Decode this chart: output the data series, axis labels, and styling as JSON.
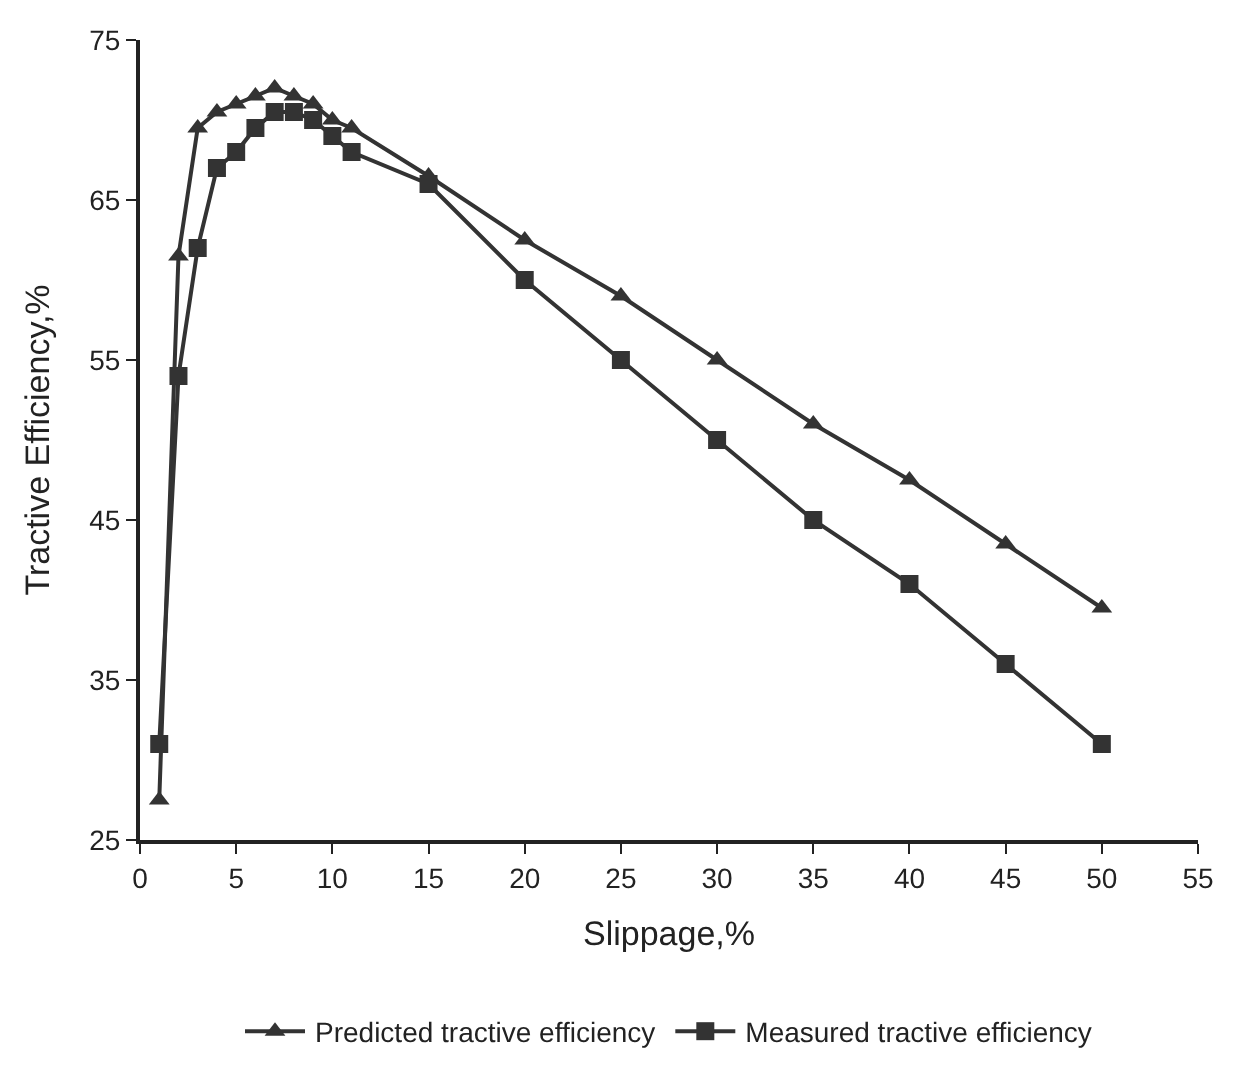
{
  "chart_data": {
    "type": "line",
    "xlabel": "Slippage,%",
    "ylabel": "Tractive Efficiency,%",
    "x": [
      1,
      2,
      3,
      4,
      5,
      6,
      7,
      8,
      9,
      10,
      11,
      15,
      20,
      25,
      30,
      35,
      40,
      45,
      50
    ],
    "series": [
      {
        "name": "Predicted tractive efficiency",
        "color": "#333333",
        "marker": "triangle",
        "values": [
          27.5,
          61.5,
          69.5,
          70.5,
          71,
          71.5,
          72,
          71.5,
          71,
          70,
          69.5,
          66.5,
          62.5,
          59,
          55,
          51,
          47.5,
          43.5,
          39.5
        ]
      },
      {
        "name": "Measured tractive efficiency",
        "color": "#333333",
        "marker": "square",
        "values": [
          31,
          54,
          62,
          67,
          68,
          69.5,
          70.5,
          70.5,
          70,
          69,
          68,
          66,
          60,
          55,
          50,
          45,
          41,
          36,
          31
        ]
      }
    ],
    "xlim": [
      0,
      55
    ],
    "xticks": [
      0,
      5,
      10,
      15,
      20,
      25,
      30,
      35,
      40,
      45,
      50,
      55
    ],
    "ylim": [
      25,
      75
    ],
    "yticks": [
      25,
      35,
      45,
      55,
      65,
      75
    ],
    "legend": "bottom",
    "line_style": "solid"
  }
}
